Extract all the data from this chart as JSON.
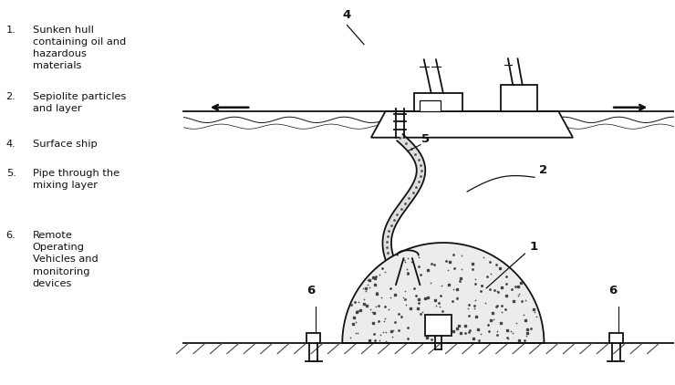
{
  "bg_color": "#ffffff",
  "line_color": "#111111",
  "figsize": [
    7.4,
    4.22
  ],
  "dpi": 100,
  "legend_items": [
    [
      "1.",
      "Sunken hull\ncontaining oil and\nhazardous\nmaterials"
    ],
    [
      "2.",
      "Sepiolite particles\nand layer"
    ],
    [
      "4.",
      "Surface ship"
    ],
    [
      "5.",
      "Pipe through the\nmixing layer"
    ],
    [
      "6.",
      "Remote\nOperating\nVehicles and\nmonitoring\ndevices"
    ]
  ]
}
